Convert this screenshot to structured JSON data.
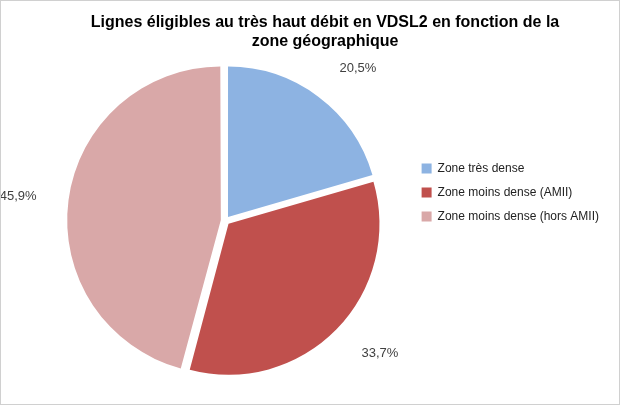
{
  "chart_data": {
    "type": "pie",
    "title": "Lignes éligibles au très haut débit en VDSL2 en fonction de la zone géographique",
    "categories": [
      "Zone très dense",
      "Zone moins dense (AMII)",
      "Zone moins dense (hors AMII)"
    ],
    "values": [
      20.5,
      33.7,
      45.9
    ],
    "value_labels": [
      "20,5%",
      "33,7%",
      "45,9%"
    ],
    "colors": [
      "#8db3e2",
      "#c0504d",
      "#d9a8a8"
    ],
    "data_labels": true,
    "legend": "right"
  }
}
